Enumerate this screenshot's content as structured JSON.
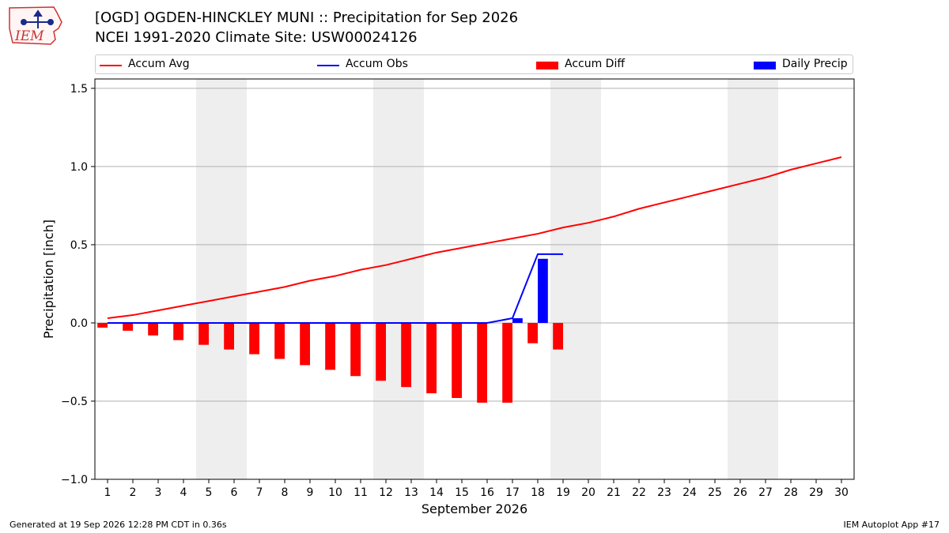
{
  "logo": {
    "text": "IEM"
  },
  "header": {
    "title": "[OGD] OGDEN-HINCKLEY MUNI :: Precipitation for Sep 2026",
    "subtitle": "NCEI 1991-2020 Climate Site: USW00024126"
  },
  "legend": {
    "items": [
      {
        "label": "Accum Avg",
        "kind": "line",
        "color": "#ff0000"
      },
      {
        "label": "Accum Obs",
        "kind": "line",
        "color": "#0000ff"
      },
      {
        "label": "Accum Diff",
        "kind": "bar",
        "color": "#ff0000"
      },
      {
        "label": "Daily Precip",
        "kind": "bar",
        "color": "#0000ff"
      }
    ]
  },
  "footer": {
    "left": "Generated at 19 Sep 2026 12:28 PM CDT in 0.36s",
    "right": "IEM Autoplot App #17"
  },
  "chart_data": {
    "type": "bar",
    "xlabel": "September 2026",
    "ylabel": "Precipitation [inch]",
    "xlim": [
      0.5,
      30.5
    ],
    "ylim": [
      -1.0,
      1.56
    ],
    "yticks": [
      -1.0,
      -0.5,
      0.0,
      0.5,
      1.0,
      1.5
    ],
    "ytick_labels": [
      "−1.0",
      "−0.5",
      "0.0",
      "0.5",
      "1.0",
      "1.5"
    ],
    "x": [
      1,
      2,
      3,
      4,
      5,
      6,
      7,
      8,
      9,
      10,
      11,
      12,
      13,
      14,
      15,
      16,
      17,
      18,
      19,
      20,
      21,
      22,
      23,
      24,
      25,
      26,
      27,
      28,
      29,
      30
    ],
    "grid": true,
    "weekend_shading": [
      [
        4.5,
        6.5
      ],
      [
        11.5,
        13.5
      ],
      [
        18.5,
        20.5
      ],
      [
        25.5,
        27.5
      ]
    ],
    "weekend_color": "#eeeeee",
    "series": [
      {
        "name": "Accum Avg",
        "kind": "line",
        "color": "#ff0000",
        "x": [
          1,
          2,
          3,
          4,
          5,
          6,
          7,
          8,
          9,
          10,
          11,
          12,
          13,
          14,
          15,
          16,
          17,
          18,
          19,
          20,
          21,
          22,
          23,
          24,
          25,
          26,
          27,
          28,
          29,
          30
        ],
        "values": [
          0.03,
          0.05,
          0.08,
          0.11,
          0.14,
          0.17,
          0.2,
          0.23,
          0.27,
          0.3,
          0.34,
          0.37,
          0.41,
          0.45,
          0.48,
          0.51,
          0.54,
          0.57,
          0.61,
          0.64,
          0.68,
          0.73,
          0.77,
          0.81,
          0.85,
          0.89,
          0.93,
          0.98,
          1.02,
          1.06
        ]
      },
      {
        "name": "Accum Obs",
        "kind": "line",
        "color": "#0000ff",
        "x": [
          1,
          2,
          3,
          4,
          5,
          6,
          7,
          8,
          9,
          10,
          11,
          12,
          13,
          14,
          15,
          16,
          17,
          18,
          19
        ],
        "values": [
          0,
          0,
          0,
          0,
          0,
          0,
          0,
          0,
          0,
          0,
          0,
          0,
          0,
          0,
          0,
          0,
          0.03,
          0.44,
          0.44
        ]
      },
      {
        "name": "Accum Diff",
        "kind": "bar",
        "color": "#ff0000",
        "x": [
          1,
          2,
          3,
          4,
          5,
          6,
          7,
          8,
          9,
          10,
          11,
          12,
          13,
          14,
          15,
          16,
          17,
          18,
          19
        ],
        "values": [
          -0.03,
          -0.05,
          -0.08,
          -0.11,
          -0.14,
          -0.17,
          -0.2,
          -0.23,
          -0.27,
          -0.3,
          -0.34,
          -0.37,
          -0.41,
          -0.45,
          -0.48,
          -0.51,
          -0.51,
          -0.13,
          -0.17
        ]
      },
      {
        "name": "Daily Precip",
        "kind": "bar",
        "color": "#0000ff",
        "x": [
          17,
          18
        ],
        "values": [
          0.03,
          0.41
        ]
      }
    ]
  }
}
